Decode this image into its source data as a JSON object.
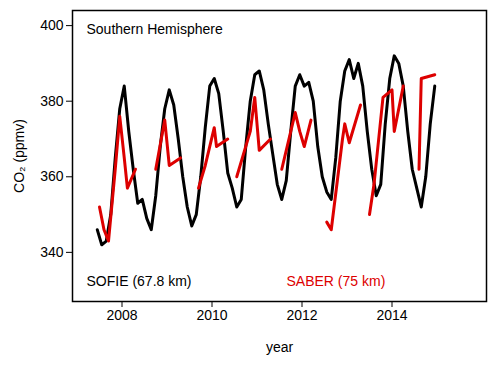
{
  "chart_data": {
    "type": "line",
    "title": "Southern Hemisphere",
    "x_label": "year",
    "y_label": "CO₂ (ppmv)",
    "xlim": [
      2006.9,
      2016.1
    ],
    "xticks": [
      2008,
      2010,
      2012,
      2014
    ],
    "ylim": [
      327,
      404
    ],
    "yticks": [
      340,
      360,
      380,
      400
    ],
    "grid": false,
    "legend": "bottom",
    "series": [
      {
        "name": "SOFIE (67.8 km)",
        "color": "#000000",
        "x": [
          2007.45,
          2007.55,
          2007.65,
          2007.75,
          2007.85,
          2007.95,
          2008.05,
          2008.15,
          2008.25,
          2008.35,
          2008.45,
          2008.55,
          2008.65,
          2008.75,
          2008.85,
          2008.95,
          2009.05,
          2009.15,
          2009.25,
          2009.35,
          2009.45,
          2009.55,
          2009.65,
          2009.75,
          2009.85,
          2009.95,
          2010.05,
          2010.15,
          2010.25,
          2010.35,
          2010.45,
          2010.55,
          2010.65,
          2010.75,
          2010.85,
          2010.95,
          2011.05,
          2011.15,
          2011.25,
          2011.35,
          2011.45,
          2011.55,
          2011.65,
          2011.75,
          2011.85,
          2011.95,
          2012.05,
          2012.15,
          2012.25,
          2012.35,
          2012.45,
          2012.55,
          2012.65,
          2012.75,
          2012.85,
          2012.95,
          2013.05,
          2013.15,
          2013.25,
          2013.35,
          2013.45,
          2013.55,
          2013.65,
          2013.75,
          2013.85,
          2013.95,
          2014.05,
          2014.15,
          2014.25,
          2014.35,
          2014.45,
          2014.55,
          2014.65,
          2014.75,
          2014.85,
          2014.95
        ],
        "values": [
          346,
          342,
          343,
          350,
          365,
          378,
          384,
          372,
          362,
          353,
          354,
          349,
          346,
          355,
          368,
          378,
          383,
          379,
          370,
          360,
          352,
          347,
          350,
          360,
          373,
          384,
          386,
          382,
          372,
          361,
          357,
          352,
          354,
          368,
          380,
          387,
          388,
          383,
          374,
          366,
          358,
          354,
          359,
          372,
          384,
          387,
          384,
          385,
          380,
          368,
          360,
          356,
          354,
          365,
          380,
          388,
          391,
          386,
          390,
          384,
          372,
          362,
          355,
          358,
          374,
          386,
          392,
          390,
          384,
          372,
          362,
          357,
          352,
          360,
          374,
          384
        ]
      },
      {
        "name": "SABER (75 km)",
        "color": "#dd0000",
        "x": [
          2007.5,
          2007.6,
          2007.7,
          2007.85,
          2007.95,
          2008.05,
          2008.12,
          2008.3,
          2008.5,
          2008.75,
          2008.95,
          2009.05,
          2009.3,
          2009.5,
          2009.7,
          2009.85,
          2010.05,
          2010.1,
          2010.35,
          2010.45,
          2010.55,
          2010.85,
          2010.95,
          2011.05,
          2011.3,
          2011.45,
          2011.55,
          2011.85,
          2011.95,
          2012.05,
          2012.2,
          2012.4,
          2012.55,
          2012.65,
          2012.9,
          2012.95,
          2013.05,
          2013.3,
          2013.4,
          2013.5,
          2013.6,
          2013.8,
          2014.0,
          2014.05,
          2014.25,
          2014.45,
          2014.6,
          2014.65,
          2014.95
        ],
        "values": [
          352,
          346,
          343,
          362,
          376,
          365,
          357,
          362,
          null,
          362,
          375,
          363,
          365,
          null,
          357,
          363,
          373,
          368,
          370,
          null,
          360,
          372,
          381,
          367,
          370,
          null,
          362,
          377,
          372,
          368,
          375,
          null,
          348,
          346,
          370,
          374,
          369,
          379,
          null,
          350,
          358,
          381,
          383,
          372,
          384,
          null,
          362,
          386,
          387
        ]
      }
    ]
  }
}
